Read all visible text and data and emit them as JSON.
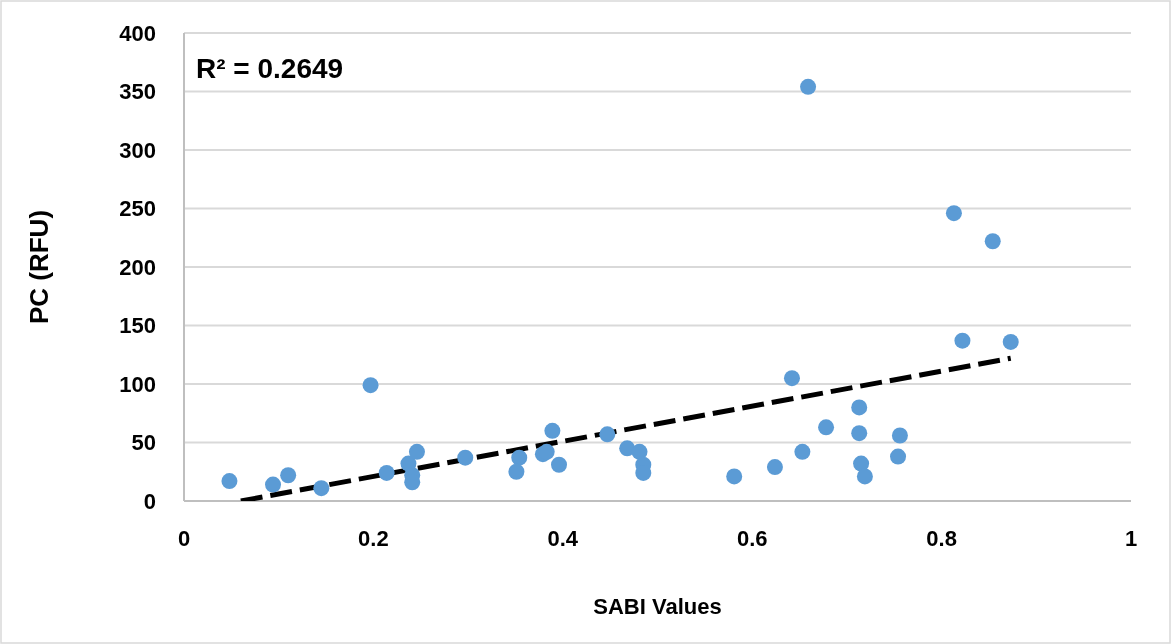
{
  "chart_data": {
    "type": "scatter",
    "xlabel": "SABI Values",
    "ylabel": "PC (RFU)",
    "annotations": [
      "R² = 0.2649"
    ],
    "xlim": [
      0,
      1
    ],
    "xticks": [
      0,
      0.2,
      0.4,
      0.6,
      0.8,
      1
    ],
    "ylim": [
      0,
      400
    ],
    "yticks": [
      0,
      50,
      100,
      150,
      200,
      250,
      300,
      350,
      400
    ],
    "grid": "y",
    "marker": "circle",
    "series": [
      {
        "color": "#5b9bd5",
        "x": [
          0.048,
          0.094,
          0.11,
          0.145,
          0.197,
          0.214,
          0.237,
          0.246,
          0.241,
          0.241,
          0.297,
          0.354,
          0.351,
          0.379,
          0.383,
          0.389,
          0.396,
          0.447,
          0.468,
          0.481,
          0.485,
          0.485,
          0.581,
          0.624,
          0.642,
          0.653,
          0.678,
          0.713,
          0.713,
          0.715,
          0.719,
          0.756,
          0.754,
          0.659,
          0.813,
          0.854,
          0.822,
          0.873
        ],
        "values": [
          17,
          14,
          22,
          11,
          99,
          24,
          32,
          42,
          22,
          16,
          37,
          37,
          25,
          40,
          42,
          60,
          31,
          57,
          45,
          42,
          31,
          24,
          21,
          29,
          105,
          42,
          63,
          80,
          58,
          32,
          21,
          56,
          38,
          354,
          246,
          222,
          137,
          136
        ]
      },
      {
        "type": "line",
        "color": "#000000",
        "line_style": "dashed",
        "marker": "none",
        "x": [
          0.06,
          0.873
        ],
        "values": [
          0,
          122
        ]
      }
    ]
  }
}
